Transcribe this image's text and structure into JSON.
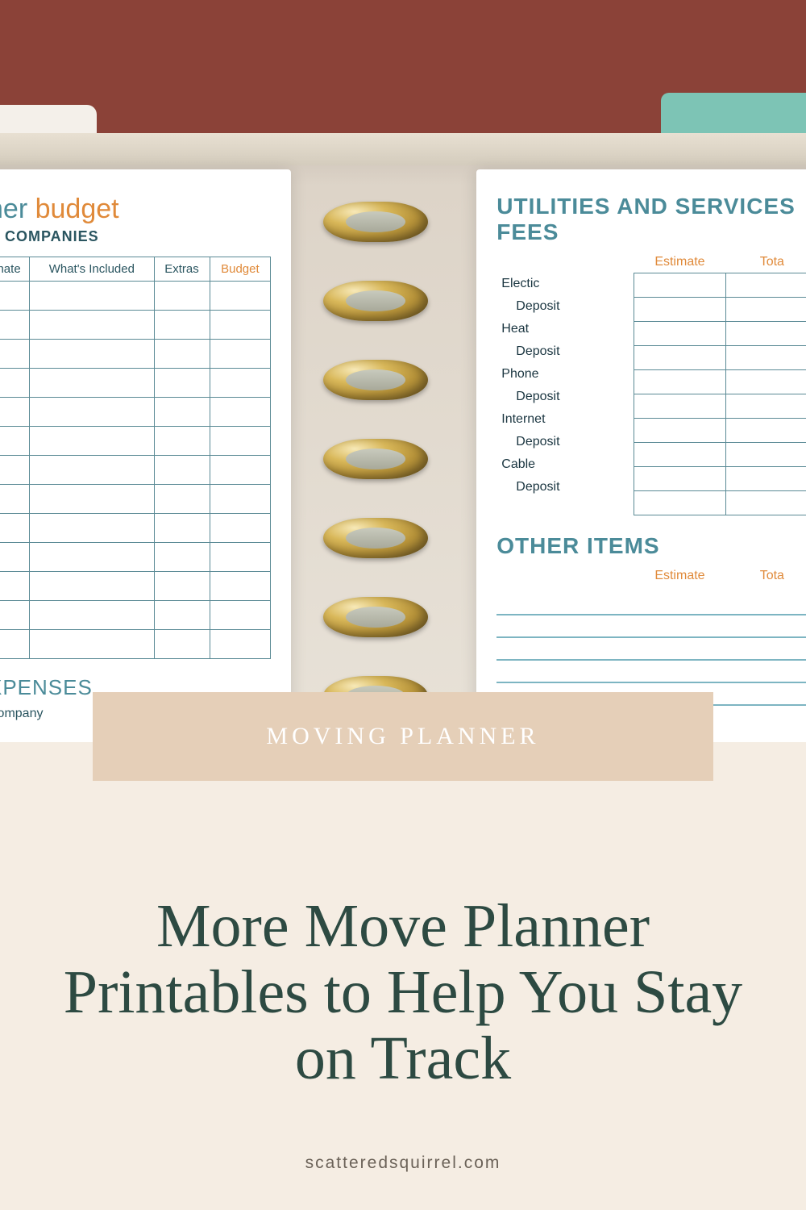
{
  "colors": {
    "background_cream": "#f5ede3",
    "desk_red": "#8b4238",
    "banner_tan": "#e5cfb8",
    "headline_green": "#2d4a42",
    "teal": "#4b8b99",
    "orange": "#e08a3a",
    "border_teal": "#5a8a95",
    "gold_ring": "#d9b85a",
    "tab_mint": "#7dc4b5"
  },
  "left_page": {
    "title_part1": "ner",
    "title_part2": "budget",
    "subtitle": "G COMPANIES",
    "columns": [
      "nate",
      "What's Included",
      "Extras",
      "Budget"
    ],
    "row_count": 13,
    "section2": "XPENSES",
    "company_label": "Company"
  },
  "right_page": {
    "heading": "UTILITIES AND SERVICES FEES",
    "col1": "Estimate",
    "col2": "Tota",
    "items": [
      {
        "label": "Electic",
        "sub": "Deposit"
      },
      {
        "label": "Heat",
        "sub": "Deposit"
      },
      {
        "label": "Phone",
        "sub": "Deposit"
      },
      {
        "label": "Internet",
        "sub": "Deposit"
      },
      {
        "label": "Cable",
        "sub": "Deposit"
      }
    ],
    "other_heading": "OTHER ITEMS",
    "other_col1": "Estimate",
    "other_col2": "Tota",
    "other_line_count": 5
  },
  "banner": "MOVING PLANNER",
  "headline": "More Move Planner Printables to Help You Stay on Track",
  "site": "scatteredsquirrel.com"
}
